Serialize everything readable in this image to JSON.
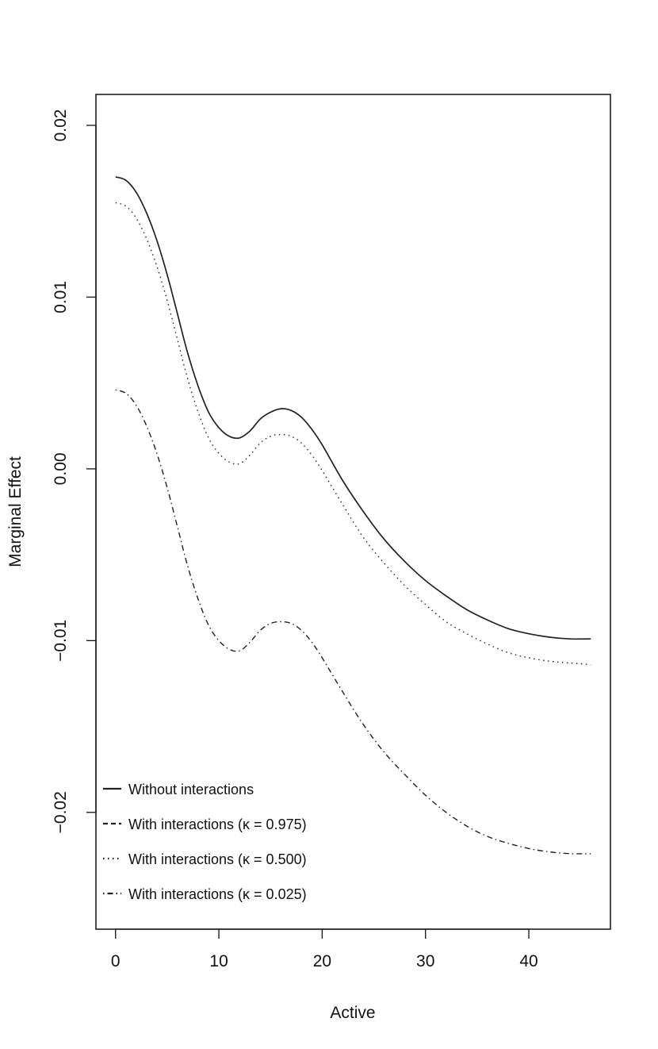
{
  "chart_data": {
    "type": "line",
    "title": "",
    "xlabel": "Active",
    "ylabel": "Marginal Effect",
    "xlim": [
      -1.9,
      47.9
    ],
    "ylim": [
      -0.0268,
      0.0218
    ],
    "xticks": [
      0,
      10,
      20,
      30,
      40
    ],
    "xtick_labels": [
      "0",
      "10",
      "20",
      "30",
      "40"
    ],
    "yticks": [
      -0.02,
      -0.01,
      0.0,
      0.01,
      0.02
    ],
    "ytick_labels": [
      "−0.02",
      "−0.01",
      "0.00",
      "0.01",
      "0.02"
    ],
    "grid": false,
    "legend_position": "bottom-left",
    "series": [
      {
        "name": "Without interactions",
        "style": "solid",
        "color": "#222222",
        "x": [
          0,
          1,
          2,
          3,
          4,
          5,
          6,
          7,
          8,
          9,
          10,
          11,
          12,
          13,
          14,
          15,
          16,
          17,
          18,
          19,
          20,
          22,
          24,
          26,
          28,
          30,
          32,
          34,
          36,
          38,
          40,
          42,
          44,
          46
        ],
        "y": [
          0.017,
          0.0168,
          0.0161,
          0.0149,
          0.0133,
          0.0113,
          0.009,
          0.0067,
          0.0048,
          0.0033,
          0.0024,
          0.0019,
          0.0018,
          0.0022,
          0.0029,
          0.0033,
          0.0035,
          0.0034,
          0.003,
          0.0023,
          0.0014,
          -0.0007,
          -0.0025,
          -0.0041,
          -0.0054,
          -0.0065,
          -0.0074,
          -0.0082,
          -0.0088,
          -0.0093,
          -0.0096,
          -0.0098,
          -0.0099,
          -0.0099
        ]
      },
      {
        "name": "With interactions (κ = 0.975)",
        "style": "dashed",
        "color": "#222222",
        "x": [],
        "y": []
      },
      {
        "name": "With interactions (κ = 0.500)",
        "style": "dotted",
        "color": "#222222",
        "x": [
          0,
          1,
          2,
          3,
          4,
          5,
          6,
          7,
          8,
          9,
          10,
          11,
          12,
          13,
          14,
          15,
          16,
          17,
          18,
          19,
          20,
          22,
          24,
          26,
          28,
          30,
          32,
          34,
          36,
          38,
          40,
          42,
          44,
          46
        ],
        "y": [
          0.0155,
          0.0153,
          0.0146,
          0.0134,
          0.0118,
          0.0098,
          0.0075,
          0.0052,
          0.0033,
          0.0018,
          0.0009,
          0.0004,
          0.0003,
          0.0008,
          0.0015,
          0.0019,
          0.002,
          0.0019,
          0.0015,
          0.0008,
          -0.0001,
          -0.0021,
          -0.004,
          -0.0055,
          -0.0068,
          -0.0079,
          -0.0089,
          -0.0096,
          -0.0102,
          -0.0107,
          -0.011,
          -0.0112,
          -0.0113,
          -0.0114
        ]
      },
      {
        "name": "With interactions (κ = 0.025)",
        "style": "dotdash",
        "color": "#222222",
        "x": [
          0,
          1,
          2,
          3,
          4,
          5,
          6,
          7,
          8,
          9,
          10,
          11,
          12,
          13,
          14,
          15,
          16,
          17,
          18,
          19,
          20,
          22,
          24,
          26,
          28,
          30,
          32,
          34,
          36,
          38,
          40,
          42,
          44,
          46
        ],
        "y": [
          0.0046,
          0.0044,
          0.0037,
          0.0025,
          0.0009,
          -0.0011,
          -0.0034,
          -0.0057,
          -0.0076,
          -0.0091,
          -0.01,
          -0.0105,
          -0.0106,
          -0.0101,
          -0.0094,
          -0.009,
          -0.0089,
          -0.009,
          -0.0094,
          -0.0101,
          -0.011,
          -0.013,
          -0.0149,
          -0.0165,
          -0.0178,
          -0.019,
          -0.02,
          -0.0208,
          -0.0214,
          -0.0218,
          -0.0221,
          -0.0223,
          -0.0224,
          -0.0224
        ]
      }
    ]
  }
}
